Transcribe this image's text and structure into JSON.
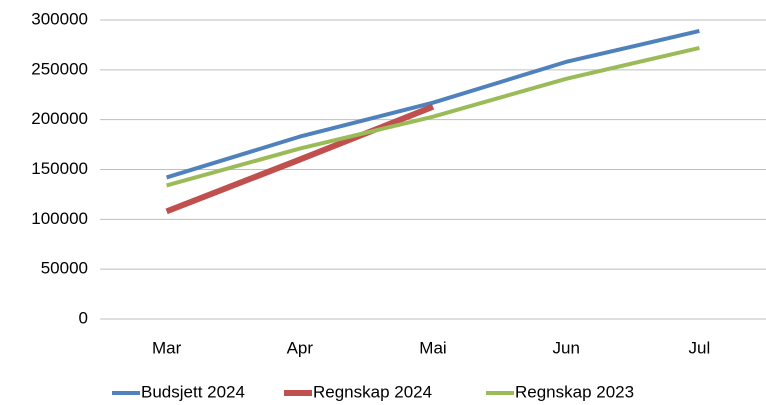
{
  "chart_data": {
    "type": "line",
    "categories": [
      "Mar",
      "Apr",
      "Mai",
      "Jun",
      "Jul"
    ],
    "series": [
      {
        "name": "Budsjett 2024",
        "color": "#4f81bd",
        "values": [
          142000,
          183000,
          217000,
          258000,
          289000
        ]
      },
      {
        "name": "Regnskap 2024",
        "color": "#c0504d",
        "values": [
          108000,
          160000,
          213000,
          null,
          null
        ]
      },
      {
        "name": "Regnskap 2023",
        "color": "#9bbb59",
        "values": [
          134000,
          171000,
          203000,
          241000,
          272000
        ]
      }
    ],
    "ylim": [
      0,
      300000
    ],
    "yticks": [
      0,
      50000,
      100000,
      150000,
      200000,
      250000,
      300000
    ],
    "grid": true,
    "legend": "bottom"
  }
}
